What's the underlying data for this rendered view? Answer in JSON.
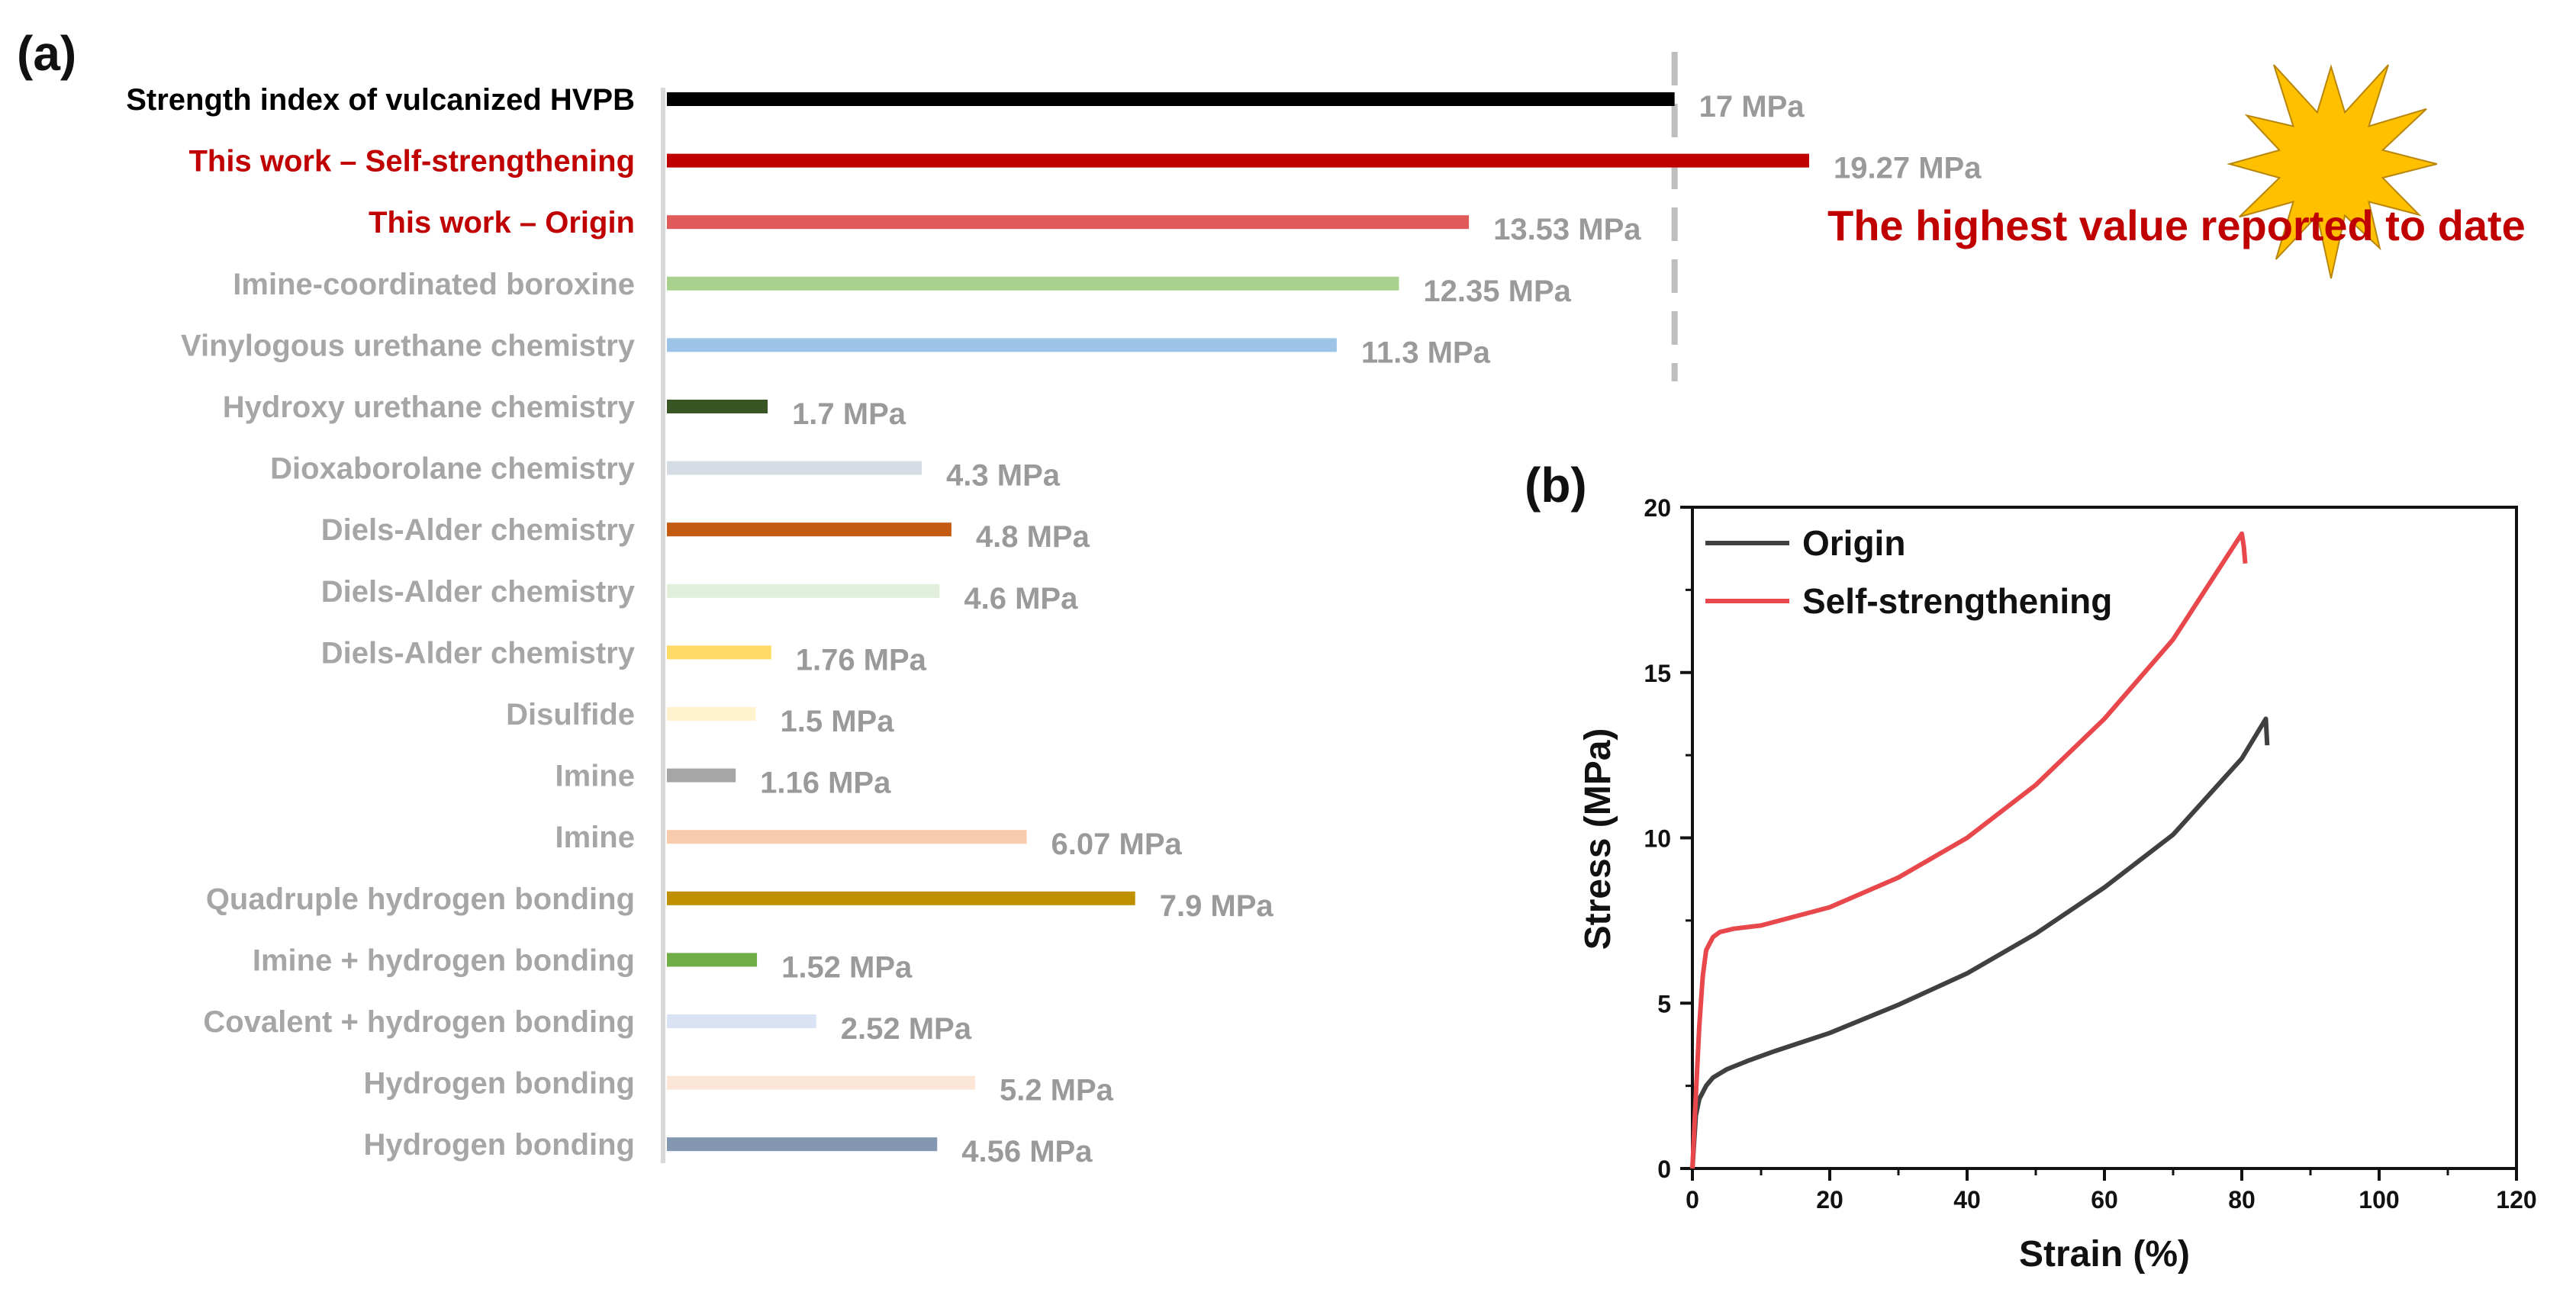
{
  "chart_data": [
    {
      "panel": "(a)",
      "type": "bar",
      "orientation": "horizontal",
      "categories": [
        "Strength index of vulcanized HVPB",
        "This work – Self-strengthening",
        "This work – Origin",
        "Imine-coordinated boroxine",
        "Vinylogous urethane chemistry",
        "Hydroxy urethane chemistry",
        "Dioxaborolane chemistry",
        "Diels-Alder chemistry",
        "Diels-Alder chemistry",
        "Diels-Alder chemistry",
        "Disulfide",
        "Imine",
        "Imine",
        "Quadruple hydrogen bonding",
        "Imine + hydrogen bonding",
        "Covalent + hydrogen bonding",
        "Hydrogen bonding",
        "Hydrogen bonding"
      ],
      "values": [
        17,
        19.27,
        13.53,
        12.35,
        11.3,
        1.7,
        4.3,
        4.8,
        4.6,
        1.76,
        1.5,
        1.16,
        6.07,
        7.9,
        1.52,
        2.52,
        5.2,
        4.56
      ],
      "value_labels": [
        "17 MPa",
        "19.27 MPa",
        "13.53 MPa",
        "12.35 MPa",
        "11.3 MPa",
        "1.7 MPa",
        "4.3 MPa",
        "4.8 MPa",
        "4.6 MPa",
        "1.76 MPa",
        "1.5 MPa",
        "1.16 MPa",
        "6.07 MPa",
        "7.9 MPa",
        "1.52 MPa",
        "2.52 MPa",
        "5.2 MPa",
        "4.56 MPa"
      ],
      "bar_colors": [
        "#000000",
        "#c00000",
        "#e05a5a",
        "#a9d18e",
        "#9dc3e6",
        "#375623",
        "#d6dce4",
        "#c55a11",
        "#e2efda",
        "#ffd966",
        "#fff2cc",
        "#a6a6a6",
        "#f8cbad",
        "#bf9000",
        "#70ad47",
        "#dae3f3",
        "#fbe5d6",
        "#8497b0"
      ],
      "label_colors": [
        "#000000",
        "#c00000",
        "#c00000",
        "#a6a6a6",
        "#a6a6a6",
        "#a6a6a6",
        "#a6a6a6",
        "#a6a6a6",
        "#a6a6a6",
        "#a6a6a6",
        "#a6a6a6",
        "#a6a6a6",
        "#a6a6a6",
        "#a6a6a6",
        "#a6a6a6",
        "#a6a6a6",
        "#a6a6a6",
        "#a6a6a6"
      ],
      "reference_line_value": 17,
      "annotation": "The highest value reported to date",
      "annotation_color": "#c00000",
      "star_color": "#ffc000"
    },
    {
      "panel": "(b)",
      "type": "line",
      "xlabel": "Strain (%)",
      "ylabel": "Stress (MPa)",
      "xlim": [
        0,
        120
      ],
      "ylim": [
        0,
        20
      ],
      "xticks": [
        0,
        20,
        40,
        60,
        80,
        100,
        120
      ],
      "yticks": [
        0,
        5,
        10,
        15,
        20
      ],
      "legend_position": "top-left",
      "series": [
        {
          "name": "Origin",
          "color": "#404040",
          "x": [
            0,
            0.5,
            1,
            2,
            3,
            5,
            8,
            12,
            20,
            30,
            40,
            50,
            60,
            70,
            80,
            83.5,
            83.7
          ],
          "y": [
            0,
            1.6,
            2.1,
            2.5,
            2.75,
            3.0,
            3.25,
            3.55,
            4.1,
            4.95,
            5.9,
            7.1,
            8.5,
            10.1,
            12.4,
            13.6,
            12.8
          ]
        },
        {
          "name": "Self-strengthening",
          "color": "#e8474b",
          "x": [
            0,
            0.5,
            1,
            1.5,
            2,
            3,
            4,
            6,
            10,
            20,
            30,
            40,
            50,
            60,
            70,
            80,
            80.3,
            80.5
          ],
          "y": [
            0,
            2.2,
            4.3,
            5.8,
            6.6,
            7.0,
            7.15,
            7.25,
            7.35,
            7.9,
            8.8,
            10.0,
            11.6,
            13.6,
            16.0,
            19.2,
            18.8,
            18.3
          ]
        }
      ]
    }
  ]
}
